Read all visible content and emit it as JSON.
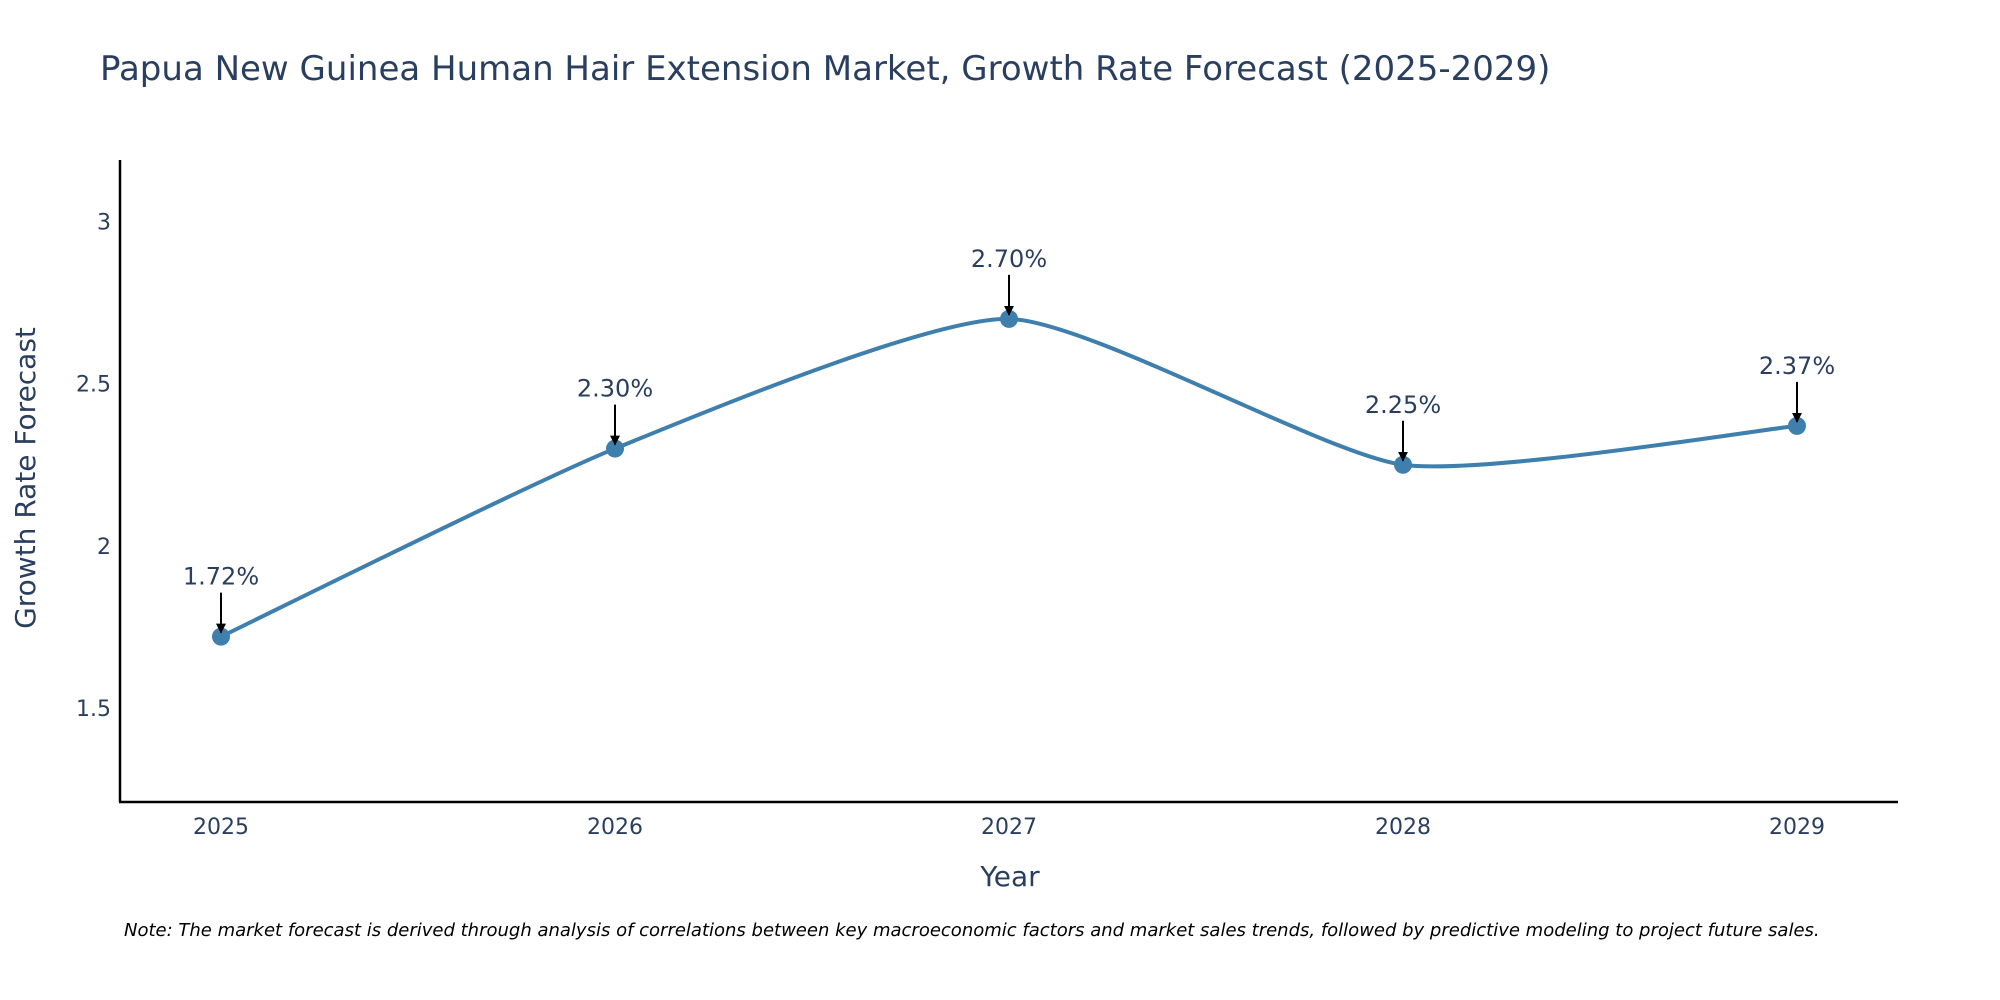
{
  "chart_data": {
    "type": "line",
    "title": "Papua New Guinea Human Hair Extension Market, Growth Rate Forecast (2025-2029)",
    "xlabel": "Year",
    "ylabel": "Growth Rate Forecast",
    "categories": [
      "2025",
      "2026",
      "2027",
      "2028",
      "2029"
    ],
    "series": [
      {
        "name": "Growth Rate Forecast",
        "values": [
          1.72,
          2.3,
          2.7,
          2.25,
          2.37
        ]
      }
    ],
    "annotations": [
      "1.72%",
      "2.30%",
      "2.70%",
      "2.25%",
      "2.37%"
    ],
    "yticks": [
      1.5,
      2,
      2.5,
      3
    ],
    "ytick_labels": [
      "1.5",
      "2",
      "2.5",
      "3"
    ],
    "ylim": [
      1.21,
      3.19
    ],
    "grid": false,
    "colors": {
      "line": "#3f7fad",
      "marker": "#3f7fad",
      "arrow": "#000000",
      "text": "#2a3f5f",
      "axis": "#000000"
    }
  },
  "note": "Note: The market forecast is derived through analysis of correlations between key macroeconomic factors and market sales trends, followed by predictive modeling to project future sales."
}
